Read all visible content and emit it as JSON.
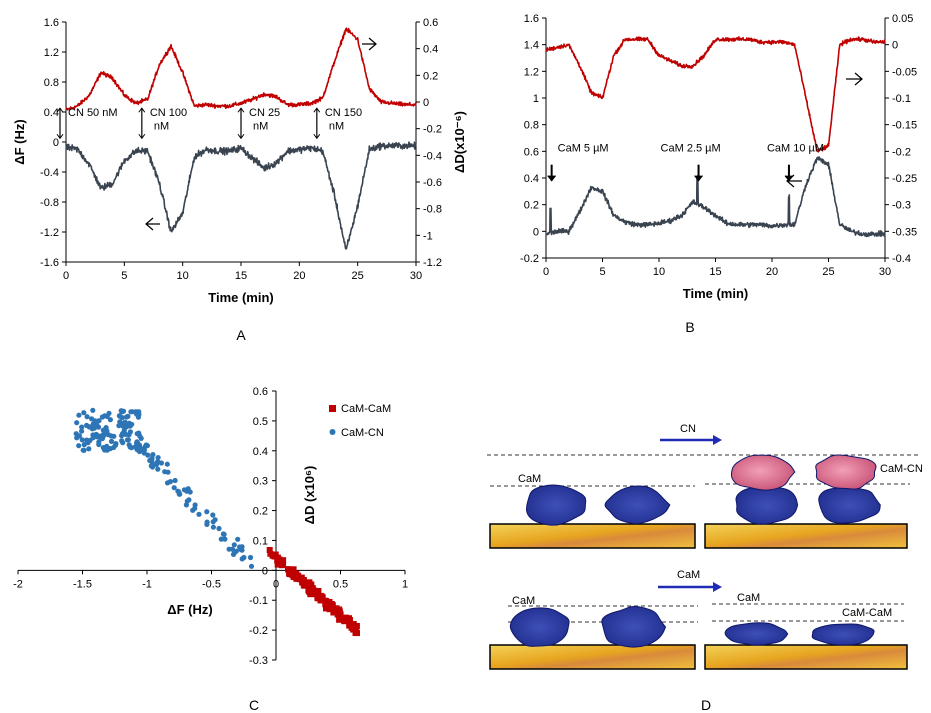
{
  "chart_data": [
    {
      "panel": "A",
      "type": "line",
      "xlabel": "Time (min)",
      "ylabel_left": "ΔF (Hz)",
      "ylabel_right": "ΔD(x10⁻⁶)",
      "xlim": [
        0,
        30
      ],
      "ylim_left": [
        -1.6,
        1.6
      ],
      "ylim_right": [
        -1.2,
        0.6
      ],
      "xticks": [
        "0",
        "5",
        "10",
        "15",
        "20",
        "25",
        "30"
      ],
      "yticks_left": [
        "1.6",
        "1.2",
        "0.8",
        "0.4",
        "0",
        "-0.4",
        "-0.8",
        "-1.2",
        "-1.6"
      ],
      "yticks_right": [
        "0.6",
        "0.4",
        "0.2",
        "0",
        "-0.2",
        "-0.4",
        "-0.6",
        "-0.8",
        "-1",
        "-1.2"
      ],
      "series": [
        {
          "color": "#c00000",
          "axis": "right",
          "x": [
            0,
            1,
            2,
            3,
            4,
            5,
            6,
            7,
            8,
            9,
            10,
            11,
            12,
            13,
            14,
            15,
            16,
            17,
            18,
            19,
            20,
            21,
            22,
            23,
            24,
            25,
            26,
            27,
            28,
            29,
            30
          ],
          "y": [
            -0.06,
            -0.03,
            0.05,
            0.22,
            0.18,
            0.05,
            -0.01,
            0.02,
            0.28,
            0.42,
            0.22,
            -0.03,
            -0.02,
            -0.03,
            -0.03,
            -0.01,
            0.02,
            0.06,
            0.04,
            -0.02,
            -0.02,
            -0.01,
            0.03,
            0.3,
            0.55,
            0.47,
            0.1,
            0.0,
            -0.01,
            -0.02,
            -0.02
          ]
        },
        {
          "color": "#3a4450",
          "axis": "left",
          "x": [
            0,
            1,
            2,
            3,
            4,
            5,
            6,
            7,
            8,
            9,
            10,
            11,
            12,
            13,
            14,
            15,
            16,
            17,
            18,
            19,
            20,
            21,
            22,
            23,
            24,
            25,
            26,
            27,
            28,
            29,
            30
          ],
          "y": [
            -0.07,
            -0.1,
            -0.3,
            -0.62,
            -0.55,
            -0.25,
            -0.12,
            -0.12,
            -0.55,
            -1.2,
            -0.95,
            -0.2,
            -0.1,
            -0.12,
            -0.12,
            -0.08,
            -0.22,
            -0.35,
            -0.28,
            -0.12,
            -0.1,
            -0.08,
            -0.12,
            -0.7,
            -1.45,
            -0.85,
            -0.1,
            -0.05,
            -0.05,
            -0.05,
            -0.05
          ]
        }
      ],
      "annotations": [
        {
          "text": "CN 50 nM",
          "x": 0,
          "y": 0.3
        },
        {
          "text": "CN 100",
          "text2": "nM",
          "x": 6.5,
          "y": 0.3
        },
        {
          "text": "CN 25",
          "text2": "nM",
          "x": 15,
          "y": 0.3
        },
        {
          "text": "CN 150",
          "text2": "nM",
          "x": 21.5,
          "y": 0.3
        }
      ]
    },
    {
      "panel": "B",
      "type": "line",
      "xlabel": "Time (min)",
      "xlim": [
        0,
        30
      ],
      "ylim_left": [
        -0.2,
        1.6
      ],
      "ylim_right": [
        -0.4,
        0.05
      ],
      "xticks": [
        "0",
        "5",
        "10",
        "15",
        "20",
        "25",
        "30"
      ],
      "yticks_left": [
        "1.6",
        "1.4",
        "1.2",
        "1",
        "0.8",
        "0.6",
        "0.4",
        "0.2",
        "0",
        "-0.2"
      ],
      "yticks_right": [
        "0.05",
        "0",
        "-0.05",
        "-0.1",
        "-0.15",
        "-0.2",
        "-0.25",
        "-0.3",
        "-0.35",
        "-0.4"
      ],
      "series": [
        {
          "color": "#c00000",
          "axis": "right",
          "x": [
            0,
            1,
            2,
            3,
            4,
            5,
            6,
            7,
            8,
            9,
            10,
            11,
            12,
            13,
            14,
            15,
            16,
            17,
            18,
            19,
            20,
            21,
            22,
            23,
            24,
            25,
            26,
            27,
            28,
            29,
            30
          ],
          "y": [
            -0.01,
            -0.005,
            0.0,
            -0.04,
            -0.09,
            -0.1,
            -0.02,
            0.01,
            0.01,
            0.01,
            -0.02,
            -0.03,
            -0.04,
            -0.04,
            -0.02,
            0.01,
            0.01,
            0.01,
            0.01,
            0.005,
            0.005,
            0.005,
            0.0,
            -0.1,
            -0.2,
            -0.19,
            0.0,
            0.01,
            0.01,
            0.005,
            0.005
          ]
        },
        {
          "color": "#3a4450",
          "axis": "left",
          "x": [
            0,
            1,
            2,
            3,
            4,
            5,
            6,
            7,
            8,
            9,
            10,
            11,
            12,
            13,
            14,
            15,
            16,
            17,
            18,
            19,
            20,
            21,
            22,
            23,
            24,
            25,
            26,
            27,
            28,
            29,
            30
          ],
          "y": [
            -0.02,
            0.0,
            0.0,
            0.15,
            0.33,
            0.3,
            0.12,
            0.07,
            0.05,
            0.05,
            0.06,
            0.08,
            0.12,
            0.22,
            0.18,
            0.12,
            0.06,
            0.05,
            0.05,
            0.05,
            0.04,
            0.05,
            0.05,
            0.35,
            0.55,
            0.5,
            0.05,
            0.0,
            -0.02,
            -0.02,
            -0.02
          ]
        }
      ],
      "annotations": [
        {
          "text": "CaM 5 µM",
          "x": 0.5,
          "y": 0.5
        },
        {
          "text": "CaM 2.5 µM",
          "x": 13.5,
          "y": 0.5
        },
        {
          "text": "CaM 10 µM",
          "x": 21.5,
          "y": 0.5
        }
      ]
    },
    {
      "panel": "C",
      "type": "scatter",
      "xlabel": "ΔF (Hz)",
      "ylabel": "ΔD (x10⁶)",
      "xlim": [
        -2,
        1
      ],
      "ylim": [
        -0.3,
        0.6
      ],
      "xticks": [
        "-2",
        "-1.5",
        "-1",
        "-0.5",
        "0",
        "0.5",
        "1"
      ],
      "yticks": [
        "0.6",
        "0.5",
        "0.4",
        "0.3",
        "0.2",
        "0.1",
        "0",
        "-0.1",
        "-0.2",
        "-0.3"
      ],
      "legend": "top-right",
      "series": [
        {
          "name": "CaM-CaM",
          "color": "#c00000",
          "marker": "square"
        },
        {
          "name": "CaM-CN",
          "color": "#2e75b6",
          "marker": "circle"
        }
      ]
    },
    {
      "panel": "D",
      "type": "diagram",
      "arrow_top": "CN",
      "arrow_bottom": "CaM",
      "labels": [
        "CaM",
        "CaM-CN",
        "CaM",
        "CaM",
        "CaM-CaM"
      ]
    }
  ],
  "panel_labels": [
    "A",
    "B",
    "C",
    "D"
  ]
}
